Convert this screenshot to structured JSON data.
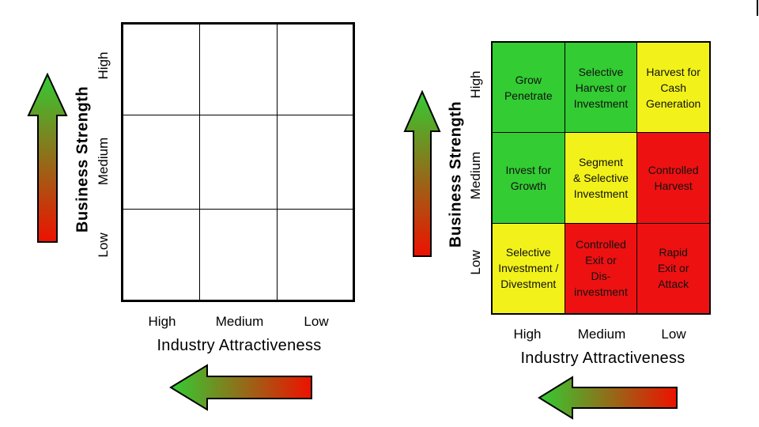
{
  "left_diagram": {
    "y_axis_title": "Business Strength",
    "y_ticks": [
      "High",
      "Medium",
      "Low"
    ],
    "x_ticks": [
      "High",
      "Medium",
      "Low"
    ],
    "x_axis_title": "Industry Attractiveness"
  },
  "right_diagram": {
    "y_axis_title": "Business Strength",
    "y_ticks": [
      "High",
      "Medium",
      "Low"
    ],
    "x_ticks": [
      "High",
      "Medium",
      "Low"
    ],
    "x_axis_title": "Industry Attractiveness",
    "cells": [
      {
        "text": "Grow\nPenetrate",
        "color": "#33cc33"
      },
      {
        "text": "Selective\nHarvest or\nInvestment",
        "color": "#33cc33"
      },
      {
        "text": "Harvest for\nCash\nGeneration",
        "color": "#f2f21a"
      },
      {
        "text": "Invest for\nGrowth",
        "color": "#33cc33"
      },
      {
        "text": "Segment\n& Selective\nInvestment",
        "color": "#f2f21a"
      },
      {
        "text": "Controlled\nHarvest",
        "color": "#ee1111"
      },
      {
        "text": "Selective\nInvestment /\nDivestment",
        "color": "#f2f21a"
      },
      {
        "text": "Controlled\nExit or\nDis-\ninvestment",
        "color": "#ee1111"
      },
      {
        "text": "Rapid\nExit or\nAttack",
        "color": "#ee1111"
      }
    ]
  },
  "arrow_colors": {
    "start": "#33cc33",
    "end": "#ee1100"
  }
}
